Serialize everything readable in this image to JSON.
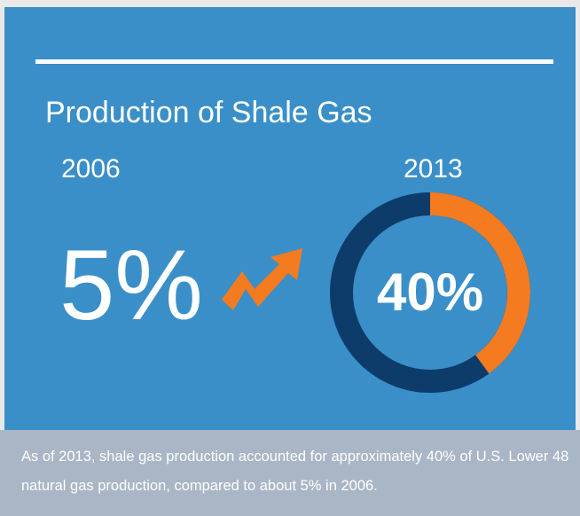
{
  "chart_data": {
    "type": "donut",
    "title": "Production of Shale Gas",
    "categories": [
      "2006",
      "2013"
    ],
    "values": [
      5,
      40
    ],
    "value_labels": [
      "5%",
      "40%"
    ],
    "color": "#f47b20",
    "track_color": "#0d3c6b",
    "caption": "As of 2013, shale gas production accounted for approximately 40% of U.S. Lower 48 natural gas production, compared to about 5% in 2006."
  }
}
